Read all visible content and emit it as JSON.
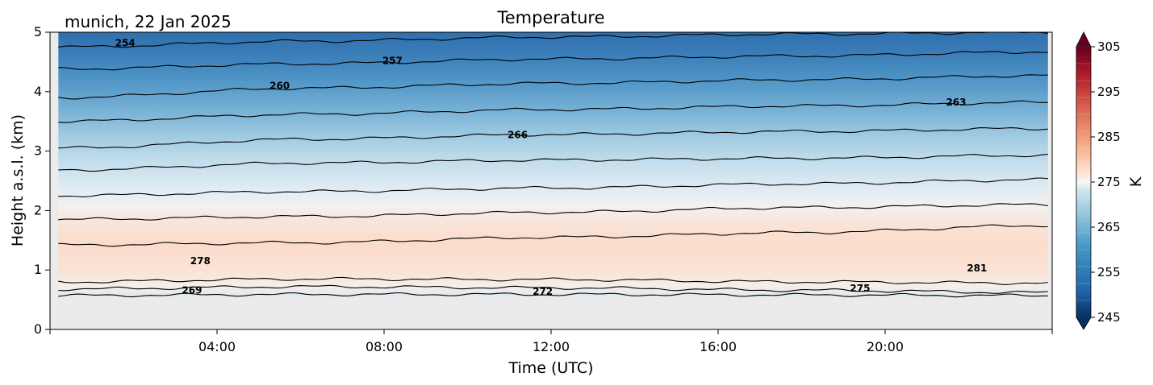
{
  "chart_data": {
    "type": "contour",
    "title": "Temperature",
    "subtitle": "munich, 22 Jan 2025",
    "xlabel": "Time (UTC)",
    "ylabel": "Height a.s.l. (km)",
    "x_ticks": [
      "04:00",
      "08:00",
      "12:00",
      "16:00",
      "20:00"
    ],
    "x_tick_hours": [
      4,
      8,
      12,
      16,
      20
    ],
    "xlim_hours": [
      0,
      24
    ],
    "y_ticks": [
      0,
      1,
      2,
      3,
      4,
      5
    ],
    "ylim": [
      0,
      5
    ],
    "data_time_range_hours": [
      0.2,
      23.9
    ],
    "data_height_range_km": [
      0.55,
      5
    ],
    "colorbar": {
      "label": "K",
      "ticks": [
        245,
        255,
        265,
        275,
        285,
        295,
        305
      ],
      "range": [
        245,
        305
      ],
      "colormap": "RdBu_r",
      "extend": "both"
    },
    "contour_labels": [
      {
        "label": "254",
        "time_h": 1.8,
        "height_km": 4.82
      },
      {
        "label": "257",
        "time_h": 8.2,
        "height_km": 4.52
      },
      {
        "label": "260",
        "time_h": 5.5,
        "height_km": 4.1
      },
      {
        "label": "263",
        "time_h": 21.7,
        "height_km": 3.82
      },
      {
        "label": "266",
        "time_h": 11.2,
        "height_km": 3.27
      },
      {
        "label": "278",
        "time_h": 3.6,
        "height_km": 1.15
      },
      {
        "label": "269",
        "time_h": 3.4,
        "height_km": 0.66
      },
      {
        "label": "272",
        "time_h": 11.8,
        "height_km": 0.64
      },
      {
        "label": "275",
        "time_h": 19.4,
        "height_km": 0.69
      },
      {
        "label": "281",
        "time_h": 22.2,
        "height_km": 1.03
      }
    ],
    "isotherms": [
      {
        "level": 254,
        "height_km": [
          4.75,
          4.85,
          4.92,
          4.97,
          5.0
        ]
      },
      {
        "level": 257,
        "height_km": [
          4.38,
          4.47,
          4.55,
          4.6,
          4.67
        ]
      },
      {
        "level": 260,
        "height_km": [
          3.9,
          4.06,
          4.14,
          4.2,
          4.27
        ]
      },
      {
        "level": 263,
        "height_km": [
          3.5,
          3.62,
          3.7,
          3.76,
          3.82
        ]
      },
      {
        "level": 266,
        "height_km": [
          3.05,
          3.2,
          3.28,
          3.33,
          3.38
        ]
      },
      {
        "level": 269,
        "height_km": [
          2.68,
          2.8,
          2.85,
          2.88,
          2.93
        ]
      },
      {
        "level": 272,
        "height_km": [
          2.25,
          2.32,
          2.38,
          2.45,
          2.52
        ]
      },
      {
        "level": 275,
        "height_km": [
          1.85,
          1.9,
          1.97,
          2.05,
          2.1
        ]
      },
      {
        "level": 278,
        "height_km": [
          1.42,
          1.46,
          1.55,
          1.63,
          1.75
        ]
      },
      {
        "level": 275,
        "height_km": [
          0.8,
          0.85,
          0.84,
          0.8,
          0.78
        ]
      },
      {
        "level": 272,
        "height_km": [
          0.68,
          0.72,
          0.7,
          0.66,
          0.62
        ]
      },
      {
        "level": 269,
        "height_km": [
          0.57,
          0.59,
          0.59,
          0.58,
          0.57
        ]
      }
    ]
  }
}
